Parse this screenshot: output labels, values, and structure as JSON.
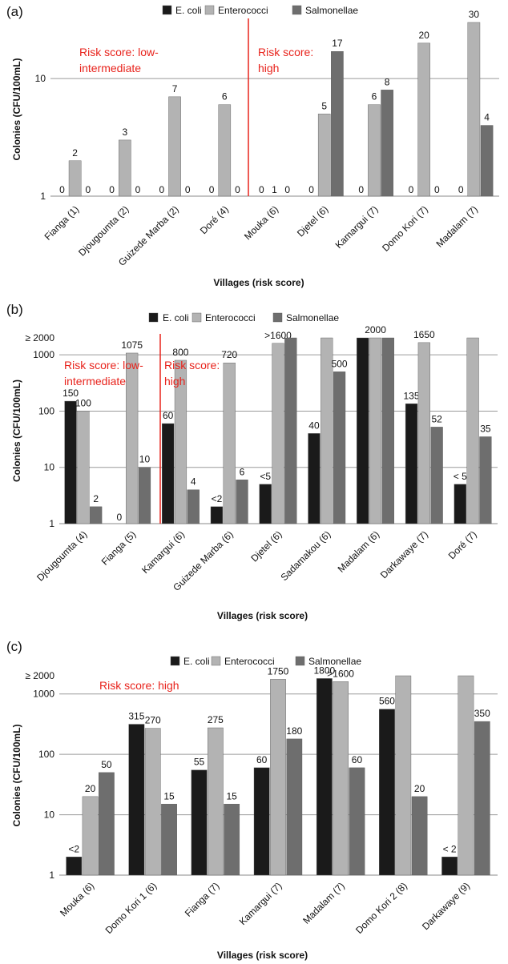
{
  "colors": {
    "ecoli": "#1a1a1a",
    "enterococci": "#b3b3b3",
    "salmonellae": "#6e6e6e",
    "risk_text": "#e8231c",
    "gridline": "#9a9a9a"
  },
  "chart_data": [
    {
      "panel": "(a)",
      "type": "bar",
      "scale": "log",
      "ylim": [
        1,
        30
      ],
      "ytick_labels": [
        "1",
        "10"
      ],
      "ytick_values": [
        1,
        10
      ],
      "xlabel": "Villages (risk score)",
      "ylabel": "Colonies (CFU/100mL)",
      "legend": [
        "E. coli",
        "Enterococci",
        "Salmonellae"
      ],
      "legend_position": "top-center",
      "grid": true,
      "categories": [
        "Fianga (1)",
        "Djougoumta (2)",
        "Guizede Marba (2)",
        "Doré (4)",
        "Mouka (6)",
        "Djetel (6)",
        "Kamargui (7)",
        "Domo Kori (7)",
        "Madalam (7)"
      ],
      "series": [
        {
          "name": "E. coli",
          "values": [
            0,
            0,
            0,
            0,
            0,
            0,
            0,
            0,
            0
          ],
          "labels": [
            "0",
            "0",
            "0",
            "0",
            "0",
            "0",
            "0",
            "0",
            "0"
          ]
        },
        {
          "name": "Enterococci",
          "values": [
            2,
            3,
            7,
            6,
            1,
            5,
            6,
            20,
            30
          ],
          "labels": [
            "2",
            "3",
            "7",
            "6",
            "1",
            "5",
            "6",
            "20",
            "30"
          ]
        },
        {
          "name": "Salmonellae",
          "values": [
            0,
            0,
            0,
            0,
            0,
            17,
            8,
            0,
            4
          ],
          "labels": [
            "0",
            "0",
            "0",
            "0",
            "0",
            "17",
            "8",
            "0",
            "4"
          ]
        }
      ],
      "risk_labels": [
        "Risk score: low-",
        "intermediate",
        "Risk score:",
        "high"
      ]
    },
    {
      "panel": "(b)",
      "type": "bar",
      "scale": "log",
      "ylim": [
        1,
        2000
      ],
      "ytick_labels": [
        "1",
        "10",
        "100",
        "1000",
        "≥ 2000"
      ],
      "ytick_values": [
        1,
        10,
        100,
        1000,
        2000
      ],
      "xlabel": "Villages (risk score)",
      "ylabel": "Colonies (CFU/100mL)",
      "legend": [
        "E. coli",
        "Enterococci",
        "Salmonellae"
      ],
      "legend_position": "top-center",
      "grid": true,
      "categories": [
        "Djougoumta (4)",
        "Fianga (5)",
        "Kamargui (6)",
        "Guizede Marba (6)",
        "Djetel (6)",
        "Sadamakou (6)",
        "Madalam (6)",
        "Darkawaye (7)",
        "Doré (7)"
      ],
      "series": [
        {
          "name": "E. coli",
          "values": [
            150,
            0,
            60,
            2,
            5,
            40,
            2000,
            135,
            5
          ],
          "labels": [
            "150",
            "0",
            "60",
            "<2",
            "<5",
            "40",
            "",
            "135",
            "< 5"
          ]
        },
        {
          "name": "Enterococci",
          "values": [
            100,
            1075,
            800,
            720,
            1600,
            2000,
            2000,
            1650,
            2000
          ],
          "labels": [
            "100",
            "1075",
            "800",
            "720",
            ">1600",
            "",
            "2000",
            "1650",
            ""
          ]
        },
        {
          "name": "Salmonellae",
          "values": [
            2,
            10,
            4,
            6,
            2000,
            500,
            2000,
            52,
            35
          ],
          "labels": [
            "2",
            "10",
            "4",
            "6",
            "",
            "500",
            "",
            "52",
            "35"
          ]
        }
      ],
      "risk_labels": [
        "Risk score: low-",
        "intermediate",
        "Risk score:",
        "high"
      ]
    },
    {
      "panel": "(c)",
      "type": "bar",
      "scale": "log",
      "ylim": [
        1,
        2000
      ],
      "ytick_labels": [
        "1",
        "10",
        "100",
        "1000",
        "≥ 2000"
      ],
      "ytick_values": [
        1,
        10,
        100,
        1000,
        2000
      ],
      "xlabel": "Villages (risk score)",
      "ylabel": "Colonies (CFU/100mL)",
      "legend": [
        "E. coli",
        "Enterococci",
        "Salmonellae"
      ],
      "legend_position": "top-center",
      "grid": true,
      "categories": [
        "Mouka (6)",
        "Domo Kori 1 (6)",
        "Fianga (7)",
        "Kamargui (7)",
        "Madalam (7)",
        "Domo Kori 2 (8)",
        "Darkawaye (9)"
      ],
      "series": [
        {
          "name": "E. coli",
          "values": [
            2,
            315,
            55,
            60,
            1800,
            560,
            2
          ],
          "labels": [
            "<2",
            "315",
            "55",
            "60",
            "1800",
            "560",
            "< 2"
          ]
        },
        {
          "name": "Enterococci",
          "values": [
            20,
            270,
            275,
            1750,
            1600,
            2000,
            2000
          ],
          "labels": [
            "20",
            "270",
            "275",
            "1750",
            ">1600",
            "",
            ""
          ]
        },
        {
          "name": "Salmonellae",
          "values": [
            50,
            15,
            15,
            180,
            60,
            20,
            350
          ],
          "labels": [
            "50",
            "15",
            "15",
            "180",
            "60",
            "20",
            "350"
          ]
        }
      ],
      "risk_labels": [
        "Risk score: high"
      ]
    }
  ]
}
